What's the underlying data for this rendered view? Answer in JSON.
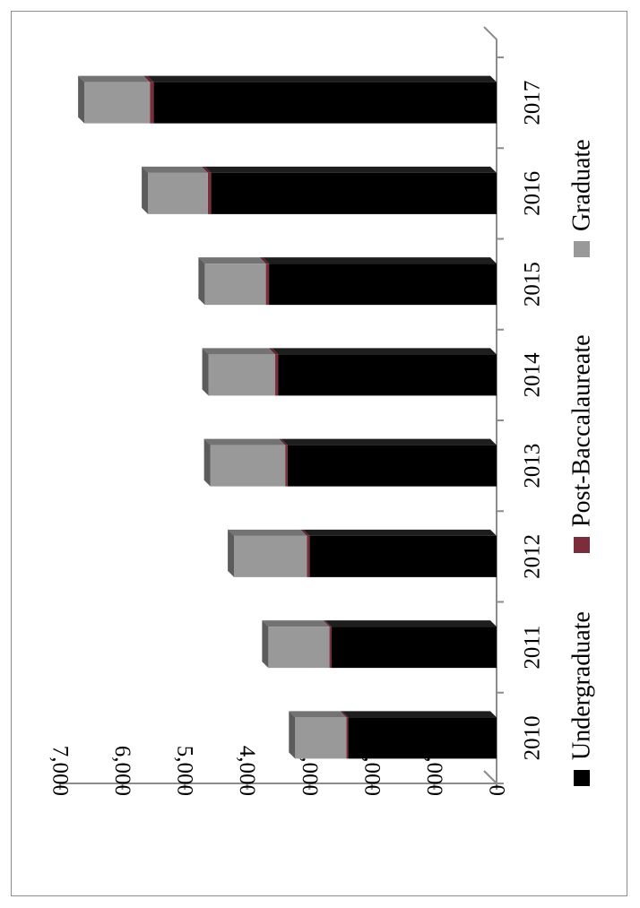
{
  "chart_data": {
    "type": "bar",
    "orientation": "vertical (page rotated 90° clockwise)",
    "stacked": true,
    "three_d": true,
    "title": "",
    "xlabel": "",
    "ylabel": "",
    "categories": [
      "2010",
      "2011",
      "2012",
      "2013",
      "2014",
      "2015",
      "2016",
      "2017"
    ],
    "series": [
      {
        "name": "Undergraduate",
        "color": "#000000",
        "values": [
          2380,
          2650,
          3000,
          3350,
          3500,
          3650,
          4580,
          5500
        ]
      },
      {
        "name": "Post-Baccalaureate",
        "color": "#7b2d3c",
        "values": [
          30,
          30,
          40,
          40,
          50,
          50,
          50,
          60
        ]
      },
      {
        "name": "Graduate",
        "color": "#999999",
        "values": [
          820,
          980,
          1170,
          1200,
          1070,
          980,
          960,
          1050
        ]
      }
    ],
    "y_ticks": [
      "0",
      "1,000",
      "2,000",
      "3,000",
      "4,000",
      "5,000",
      "6,000",
      "7,000"
    ],
    "ylim": [
      0,
      7000
    ],
    "grid": false,
    "legend_position": "bottom"
  }
}
